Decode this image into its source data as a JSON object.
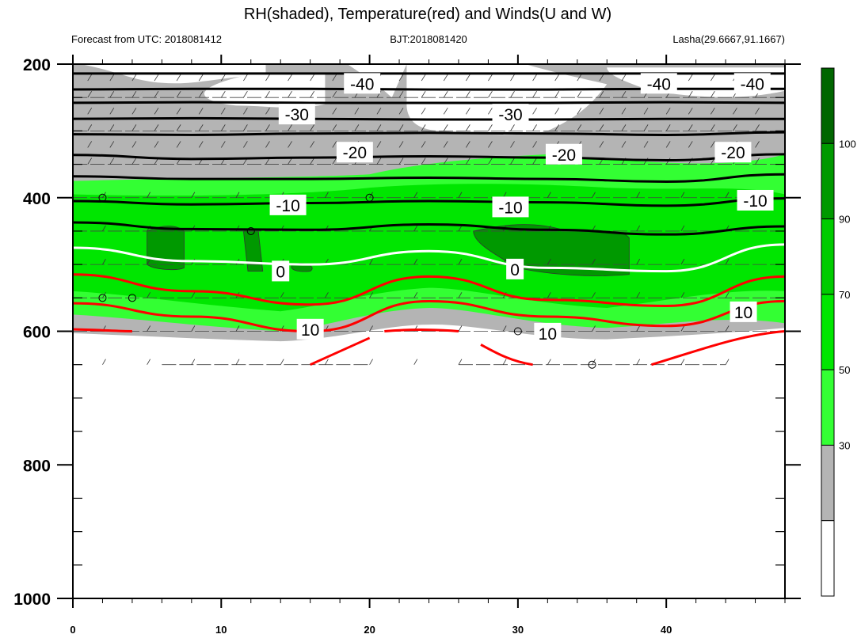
{
  "chart_data": {
    "type": "cross-section",
    "title": "RH(shaded), Temperature(red) and Winds(U and W)",
    "subtitle_left": "Forecast from UTC: 2018081412",
    "subtitle_center": "BJT:2018081420",
    "subtitle_right": "Lasha(29.6667,91.1667)",
    "x_ticks": [
      "0",
      "10",
      "20",
      "30",
      "40"
    ],
    "xlim": [
      0,
      48
    ],
    "y_ticks": [
      "200",
      "400",
      "600",
      "800",
      "1000"
    ],
    "ylim": [
      200,
      1000
    ],
    "y_reversed": true,
    "colorbar_labels": [
      "30",
      "50",
      "70",
      "90",
      "100"
    ],
    "colorbar_colors": [
      "#ffffff",
      "#b4b4b4",
      "#33ff33",
      "#00e600",
      "#00cc00",
      "#009900",
      "#006600"
    ],
    "temperature_contours": [
      {
        "value": -40,
        "label": "-40",
        "color": "#000000",
        "y": [
          238,
          237,
          237,
          238,
          238,
          237,
          237
        ]
      },
      {
        "value": -30,
        "label": "-30",
        "color": "#000000",
        "y": [
          282,
          281,
          282,
          283,
          283,
          282,
          282
        ]
      },
      {
        "value": -20,
        "label": "-20",
        "color": "#000000",
        "y": [
          336,
          342,
          340,
          338,
          340,
          344,
          335
        ]
      },
      {
        "value": -10,
        "label": "-10",
        "color": "#000000",
        "y": [
          405,
          410,
          408,
          405,
          407,
          412,
          401
        ]
      },
      {
        "value": 0,
        "label": "0",
        "color": "#ffffff",
        "y": [
          475,
          495,
          500,
          480,
          505,
          510,
          470
        ]
      },
      {
        "value": 10,
        "label": "10",
        "color": "#ff0000",
        "y": [
          558,
          578,
          600,
          555,
          578,
          592,
          555
        ]
      }
    ],
    "temperature_labels": [
      {
        "text": "-40",
        "x": 19.5,
        "y": 230
      },
      {
        "text": "-40",
        "x": 39.5,
        "y": 230
      },
      {
        "text": "-40",
        "x": 45.8,
        "y": 230
      },
      {
        "text": "-30",
        "x": 15.1,
        "y": 276
      },
      {
        "text": "-30",
        "x": 29.5,
        "y": 276
      },
      {
        "text": "-20",
        "x": 19.0,
        "y": 333
      },
      {
        "text": "-20",
        "x": 33.1,
        "y": 336
      },
      {
        "text": "-20",
        "x": 44.5,
        "y": 333
      },
      {
        "text": "-10",
        "x": 14.5,
        "y": 412
      },
      {
        "text": "-10",
        "x": 29.5,
        "y": 415
      },
      {
        "text": "-10",
        "x": 46.0,
        "y": 405
      },
      {
        "text": "0",
        "x": 14.0,
        "y": 511
      },
      {
        "text": "0",
        "x": 29.8,
        "y": 508
      },
      {
        "text": "10",
        "x": 16.0,
        "y": 598
      },
      {
        "text": "10",
        "x": 32.0,
        "y": 604
      },
      {
        "text": "10",
        "x": 45.2,
        "y": 572
      }
    ]
  }
}
